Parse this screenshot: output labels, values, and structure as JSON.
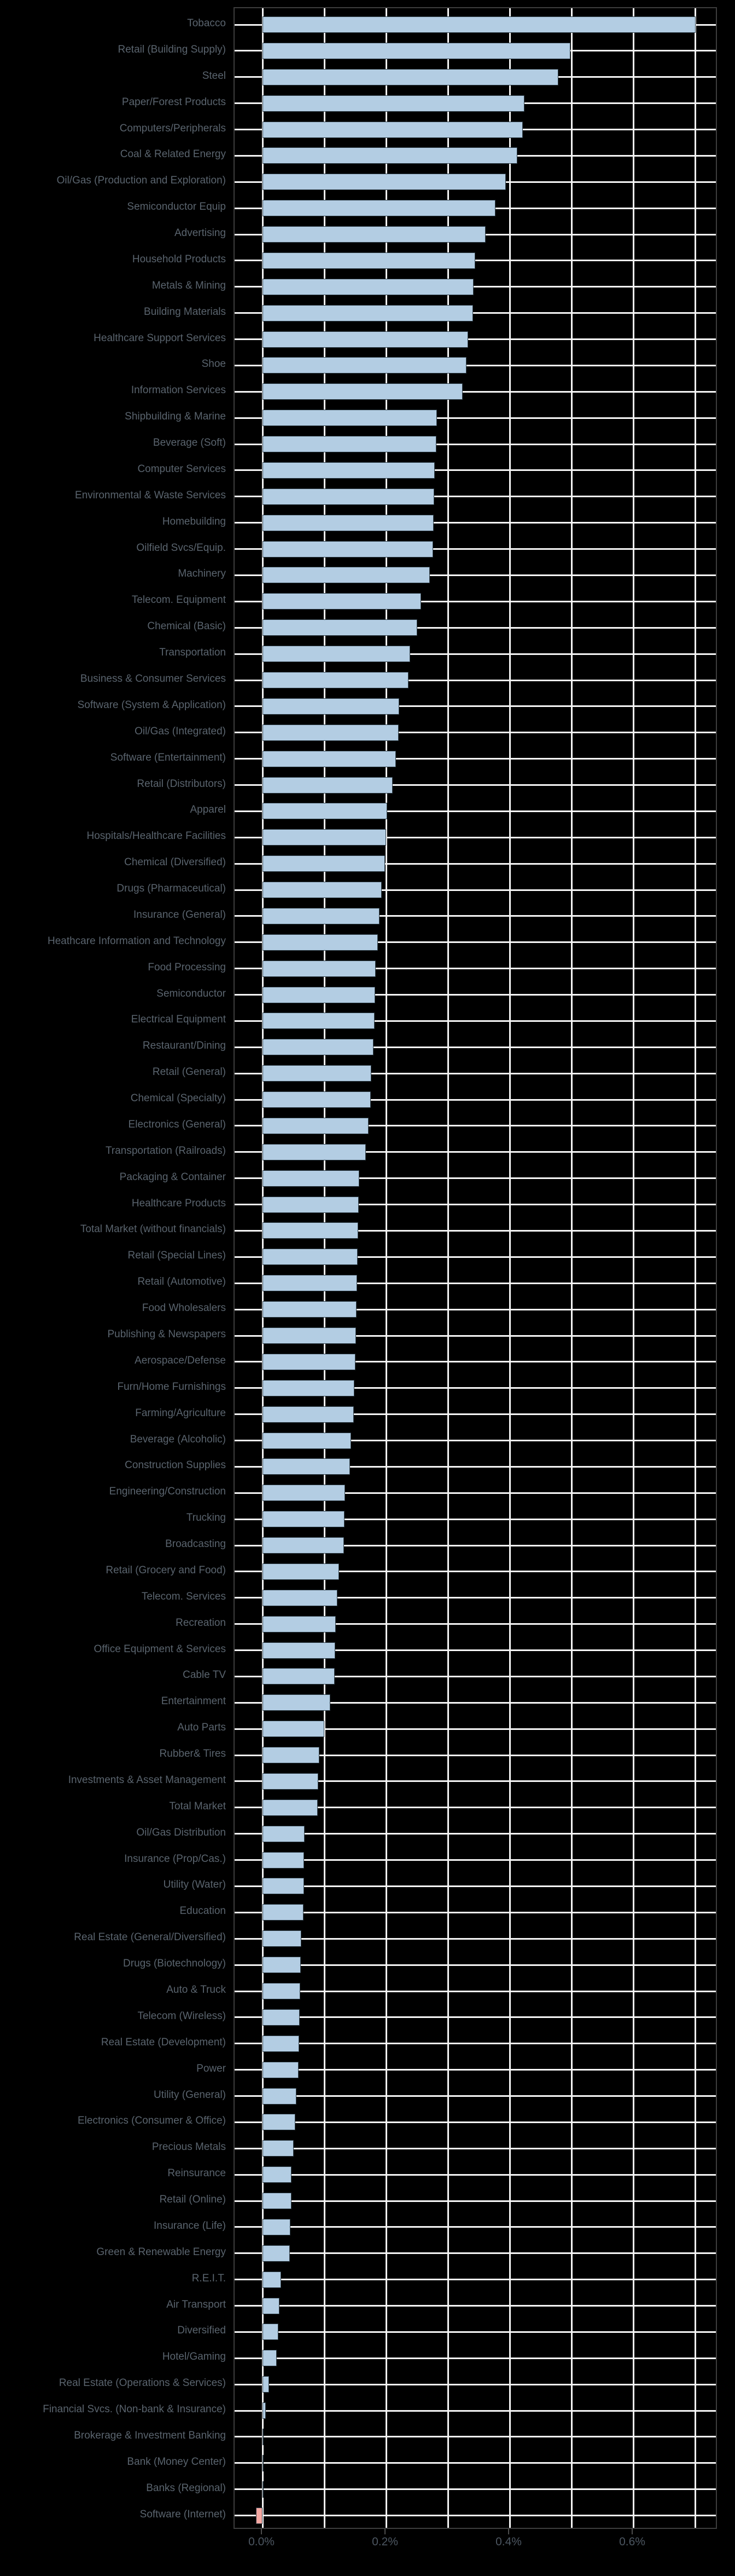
{
  "chart_data": {
    "type": "bar",
    "orientation": "horizontal",
    "title": "",
    "xlabel": "",
    "ylabel": "",
    "unit": "%",
    "grid": true,
    "legend_position": "none",
    "xlim": [
      -0.045,
      0.737
    ],
    "x_gridline_step": 0.1,
    "x_gridlines": [
      0.0,
      0.1,
      0.2,
      0.3,
      0.4,
      0.5,
      0.6,
      0.7
    ],
    "x_major_ticks": [
      0.0,
      0.2,
      0.4,
      0.6
    ],
    "x_tick_labels": [
      "0.0%",
      "0.2%",
      "0.4%",
      "0.6%"
    ],
    "categories": [
      "Tobacco",
      "Retail (Building Supply)",
      "Steel",
      "Paper/Forest Products",
      "Computers/Peripherals",
      "Coal & Related Energy",
      "Oil/Gas (Production and Exploration)",
      "Semiconductor Equip",
      "Advertising",
      "Household Products",
      "Metals & Mining",
      "Building Materials",
      "Healthcare Support Services",
      "Shoe",
      "Information Services",
      "Shipbuilding & Marine",
      "Beverage (Soft)",
      "Computer Services",
      "Environmental & Waste Services",
      "Homebuilding",
      "Oilfield Svcs/Equip.",
      "Machinery",
      "Telecom. Equipment",
      "Chemical (Basic)",
      "Transportation",
      "Business & Consumer Services",
      "Software (System & Application)",
      "Oil/Gas (Integrated)",
      "Software (Entertainment)",
      "Retail (Distributors)",
      "Apparel",
      "Hospitals/Healthcare Facilities",
      "Chemical (Diversified)",
      "Drugs (Pharmaceutical)",
      "Insurance (General)",
      "Heathcare Information and Technology",
      "Food Processing",
      "Semiconductor",
      "Electrical Equipment",
      "Restaurant/Dining",
      "Retail (General)",
      "Chemical (Specialty)",
      "Electronics (General)",
      "Transportation (Railroads)",
      "Packaging & Container",
      "Healthcare Products",
      "Total Market (without financials)",
      "Retail (Special Lines)",
      "Retail (Automotive)",
      "Food Wholesalers",
      "Publishing & Newspapers",
      "Aerospace/Defense",
      "Furn/Home Furnishings",
      "Farming/Agriculture",
      "Beverage (Alcoholic)",
      "Construction Supplies",
      "Engineering/Construction",
      "Trucking",
      "Broadcasting",
      "Retail (Grocery and Food)",
      "Telecom. Services",
      "Recreation",
      "Office Equipment & Services",
      "Cable TV",
      "Entertainment",
      "Auto Parts",
      "Rubber& Tires",
      "Investments & Asset Management",
      "Total Market",
      "Oil/Gas Distribution",
      "Insurance (Prop/Cas.)",
      "Utility (Water)",
      "Education",
      "Real Estate (General/Diversified)",
      "Drugs (Biotechnology)",
      "Auto & Truck",
      "Telecom (Wireless)",
      "Real Estate (Development)",
      "Power",
      "Utility (General)",
      "Electronics (Consumer & Office)",
      "Precious Metals",
      "Reinsurance",
      "Retail (Online)",
      "Insurance (Life)",
      "Green & Renewable Energy",
      "R.E.I.T.",
      "Air Transport",
      "Diversified",
      "Hotel/Gaming",
      "Real Estate (Operations & Services)",
      "Financial Svcs. (Non-bank & Insurance)",
      "Brokerage & Investment Banking",
      "Bank (Money Center)",
      "Banks (Regional)",
      "Software (Internet)"
    ],
    "values": [
      0.701,
      0.498,
      0.479,
      0.424,
      0.421,
      0.412,
      0.394,
      0.377,
      0.361,
      0.344,
      0.342,
      0.341,
      0.333,
      0.33,
      0.324,
      0.282,
      0.281,
      0.279,
      0.278,
      0.277,
      0.276,
      0.271,
      0.257,
      0.25,
      0.239,
      0.236,
      0.221,
      0.22,
      0.216,
      0.211,
      0.202,
      0.2,
      0.198,
      0.193,
      0.189,
      0.187,
      0.183,
      0.182,
      0.181,
      0.18,
      0.176,
      0.175,
      0.172,
      0.167,
      0.157,
      0.156,
      0.155,
      0.154,
      0.153,
      0.152,
      0.151,
      0.15,
      0.149,
      0.148,
      0.143,
      0.142,
      0.134,
      0.133,
      0.132,
      0.124,
      0.121,
      0.119,
      0.118,
      0.117,
      0.11,
      0.1,
      0.092,
      0.09,
      0.089,
      0.068,
      0.067,
      0.067,
      0.066,
      0.063,
      0.062,
      0.061,
      0.06,
      0.059,
      0.058,
      0.055,
      0.053,
      0.05,
      0.047,
      0.047,
      0.045,
      0.044,
      0.03,
      0.027,
      0.026,
      0.023,
      0.011,
      0.005,
      0.002,
      0.001,
      0.001,
      -0.011
    ],
    "colors": {
      "background": "#000000",
      "positive_bar": "#b3cde3",
      "negative_bar": "#f4a8a2",
      "bar_edge": "#2e3d47",
      "gridline": "#f5f5f5",
      "axis_spine": "#3d3d3d",
      "axis_tick": "#4d4d4d",
      "category_label": "#5a646e",
      "tick_label": "#4c5661"
    }
  }
}
